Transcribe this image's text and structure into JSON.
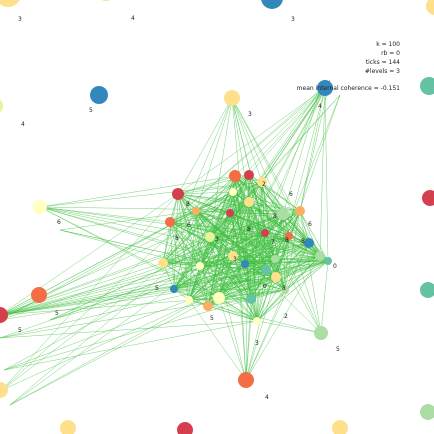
{
  "colors": {
    "edge": "#3fbf3f",
    "palette": {
      "red": "#d53e4f",
      "orange": "#f46d43",
      "lightorange": "#fdae61",
      "yellow": "#fee08b",
      "paleyellow": "#ffffbf",
      "palegreen": "#e6f598",
      "lightgreen": "#abdda4",
      "teal": "#66c2a5",
      "blue": "#3288bd"
    }
  },
  "stats": {
    "k": "k = 100",
    "rb": "rb = 0",
    "ticks": "ticks = 144",
    "levels": "#levels = 3",
    "coherence": "mean internal coherence = -0.151"
  },
  "node_labels": [
    "3",
    "4",
    "3",
    "4",
    "5",
    "3",
    "6",
    "5",
    "5",
    "4",
    "0",
    "5",
    "4",
    "3",
    "2",
    "8",
    "5",
    "0",
    "3",
    "8",
    "6",
    "8",
    "6",
    "7",
    "8",
    "8",
    "3",
    "2",
    "8",
    "5",
    "8",
    "6"
  ]
}
